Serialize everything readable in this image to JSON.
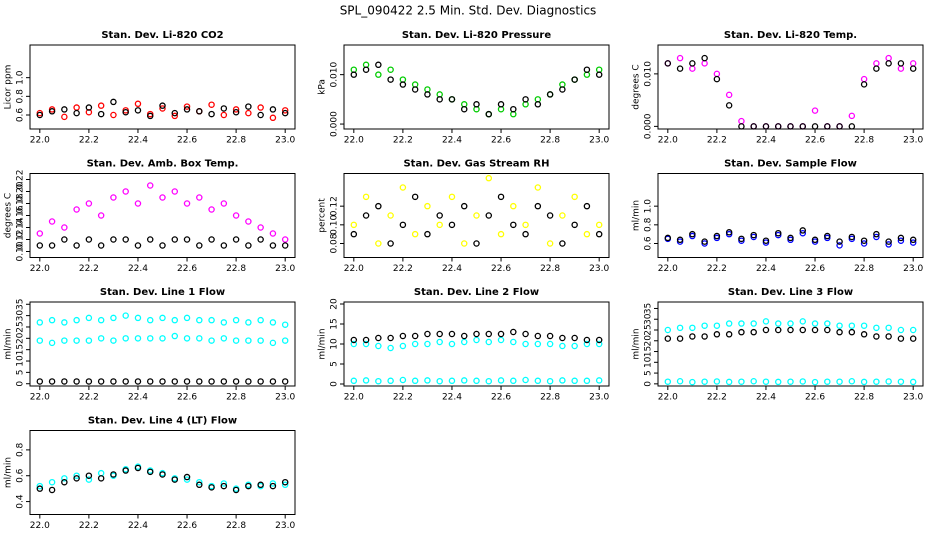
{
  "title": "SPL_090422  2.5 Min. Std. Dev. Diagnostics",
  "chart_data": [
    {
      "type": "scatter",
      "title": "Stan. Dev. Li-820 CO2",
      "y_label": "Licor ppm",
      "x": [
        22.0,
        22.05,
        22.1,
        22.15,
        22.2,
        22.25,
        22.3,
        22.35,
        22.4,
        22.45,
        22.5,
        22.55,
        22.6,
        22.65,
        22.7,
        22.75,
        22.8,
        22.85,
        22.9,
        22.95,
        23.0
      ],
      "xlim": [
        21.96,
        23.04
      ],
      "xticks": [
        {
          "value": 22,
          "label": "22.0"
        },
        22.2,
        22.4,
        22.6,
        22.8,
        {
          "value": 23,
          "label": "23.0"
        }
      ],
      "ylim": [
        0.45,
        1.35
      ],
      "yticks": [
        0.6,
        0.8,
        {
          "value": 1,
          "label": "1.0"
        }
      ],
      "series": [
        {
          "color": "#ff0000",
          "values": [
            0.62,
            0.66,
            0.58,
            0.68,
            0.63,
            0.7,
            0.6,
            0.65,
            0.72,
            0.61,
            0.67,
            0.59,
            0.69,
            0.64,
            0.71,
            0.6,
            0.66,
            0.62,
            0.68,
            0.57,
            0.65
          ]
        },
        {
          "color": "#000000",
          "values": [
            0.6,
            0.64,
            0.66,
            0.62,
            0.68,
            0.61,
            0.74,
            0.63,
            0.65,
            0.59,
            0.7,
            0.62,
            0.66,
            0.64,
            0.61,
            0.67,
            0.63,
            0.69,
            0.6,
            0.66,
            0.62
          ]
        }
      ]
    },
    {
      "type": "scatter",
      "title": "Stan. Dev. Li-820 Pressure",
      "y_label": "kPa",
      "x": [
        22.0,
        22.05,
        22.1,
        22.15,
        22.2,
        22.25,
        22.3,
        22.35,
        22.4,
        22.45,
        22.5,
        22.55,
        22.6,
        22.65,
        22.7,
        22.75,
        22.8,
        22.85,
        22.9,
        22.95,
        23.0
      ],
      "xlim": [
        21.96,
        23.04
      ],
      "xticks": [
        {
          "value": 22,
          "label": "22.0"
        },
        22.2,
        22.4,
        22.6,
        22.8,
        {
          "value": 23,
          "label": "23.0"
        }
      ],
      "ylim": [
        -0.001,
        0.016
      ],
      "yticks": [
        {
          "value": 0,
          "label": "0.000"
        },
        {
          "value": 0.01,
          "label": "0.010"
        }
      ],
      "series": [
        {
          "color": "#00cc00",
          "values": [
            0.011,
            0.012,
            0.01,
            0.011,
            0.009,
            0.008,
            0.007,
            0.006,
            0.005,
            0.004,
            0.003,
            0.002,
            0.003,
            0.002,
            0.004,
            0.005,
            0.006,
            0.008,
            0.009,
            0.01,
            0.011
          ]
        },
        {
          "color": "#000000",
          "values": [
            0.01,
            0.011,
            0.012,
            0.009,
            0.008,
            0.007,
            0.006,
            0.005,
            0.005,
            0.003,
            0.004,
            0.002,
            0.004,
            0.003,
            0.005,
            0.004,
            0.006,
            0.007,
            0.009,
            0.011,
            0.01
          ]
        }
      ]
    },
    {
      "type": "scatter",
      "title": "Stan. Dev. Li-820 Temp.",
      "y_label": "degrees C",
      "x": [
        22.0,
        22.05,
        22.1,
        22.15,
        22.2,
        22.25,
        22.3,
        22.35,
        22.4,
        22.45,
        22.5,
        22.55,
        22.6,
        22.65,
        22.7,
        22.75,
        22.8,
        22.85,
        22.9,
        22.95,
        23.0
      ],
      "xlim": [
        21.96,
        23.04
      ],
      "xticks": [
        {
          "value": 22,
          "label": "22.0"
        },
        22.2,
        22.4,
        22.6,
        22.8,
        {
          "value": 23,
          "label": "23.0"
        }
      ],
      "ylim": [
        -0.0005,
        0.0155
      ],
      "yticks": [
        {
          "value": 0,
          "label": "0.000"
        },
        {
          "value": 0.01,
          "label": "0.010"
        }
      ],
      "series": [
        {
          "color": "#ff00ff",
          "values": [
            0.012,
            0.013,
            0.011,
            0.012,
            0.01,
            0.006,
            0.001,
            0,
            0,
            0,
            0,
            0,
            0.003,
            0,
            0,
            0.002,
            0.009,
            0.012,
            0.013,
            0.011,
            0.012
          ]
        },
        {
          "color": "#000000",
          "values": [
            0.012,
            0.011,
            0.012,
            0.013,
            0.009,
            0.004,
            0,
            0,
            0,
            0,
            0,
            0,
            0,
            0,
            0,
            0,
            0.008,
            0.011,
            0.012,
            0.012,
            0.011
          ]
        }
      ]
    },
    {
      "type": "scatter",
      "title": "Stan. Dev. Amb. Box Temp.",
      "y_label": "degrees C",
      "x": [
        22.0,
        22.05,
        22.1,
        22.15,
        22.2,
        22.25,
        22.3,
        22.35,
        22.4,
        22.45,
        22.5,
        22.55,
        22.6,
        22.65,
        22.7,
        22.75,
        22.8,
        22.85,
        22.9,
        22.95,
        23.0
      ],
      "xlim": [
        21.96,
        23.04
      ],
      "xticks": [
        {
          "value": 22,
          "label": "22.0"
        },
        22.2,
        22.4,
        22.6,
        22.8,
        {
          "value": 23,
          "label": "23.0"
        }
      ],
      "ylim": [
        0.09,
        0.23
      ],
      "yticks": [
        {
          "value": 0.1,
          "label": "0.10"
        },
        0.12,
        0.14,
        0.16,
        0.18,
        {
          "value": 0.2,
          "label": "0.20"
        },
        0.22
      ],
      "series": [
        {
          "color": "#ff00ff",
          "values": [
            0.13,
            0.15,
            0.14,
            0.17,
            0.18,
            0.16,
            0.19,
            0.2,
            0.18,
            0.21,
            0.19,
            0.2,
            0.18,
            0.19,
            0.17,
            0.18,
            0.16,
            0.15,
            0.14,
            0.13,
            0.12
          ]
        },
        {
          "color": "#000000",
          "values": [
            0.11,
            0.11,
            0.12,
            0.11,
            0.12,
            0.11,
            0.12,
            0.12,
            0.11,
            0.12,
            0.11,
            0.12,
            0.12,
            0.11,
            0.12,
            0.11,
            0.12,
            0.11,
            0.12,
            0.11,
            0.11
          ]
        }
      ]
    },
    {
      "type": "scatter",
      "title": "Stan. Dev. Gas Stream RH",
      "y_label": "percent",
      "x": [
        22.0,
        22.05,
        22.1,
        22.15,
        22.2,
        22.25,
        22.3,
        22.35,
        22.4,
        22.45,
        22.5,
        22.55,
        22.6,
        22.65,
        22.7,
        22.75,
        22.8,
        22.85,
        22.9,
        22.95,
        23.0
      ],
      "xlim": [
        21.96,
        23.04
      ],
      "xticks": [
        {
          "value": 22,
          "label": "22.0"
        },
        22.2,
        22.4,
        22.6,
        22.8,
        {
          "value": 23,
          "label": "23.0"
        }
      ],
      "ylim": [
        0.065,
        0.155
      ],
      "yticks": [
        0.08,
        {
          "value": 0.1,
          "label": "0.10"
        },
        0.12
      ],
      "series": [
        {
          "color": "#ffff00",
          "values": [
            0.1,
            0.13,
            0.08,
            0.11,
            0.14,
            0.09,
            0.12,
            0.1,
            0.13,
            0.08,
            0.11,
            0.15,
            0.09,
            0.12,
            0.1,
            0.14,
            0.08,
            0.11,
            0.13,
            0.09,
            0.1
          ]
        },
        {
          "color": "#000000",
          "values": [
            0.09,
            0.11,
            0.12,
            0.08,
            0.1,
            0.13,
            0.09,
            0.11,
            0.1,
            0.12,
            0.08,
            0.11,
            0.13,
            0.1,
            0.09,
            0.12,
            0.11,
            0.08,
            0.1,
            0.12,
            0.09
          ]
        }
      ]
    },
    {
      "type": "scatter",
      "title": "Stan. Dev. Sample Flow",
      "y_label": "ml/min",
      "x": [
        22.0,
        22.05,
        22.1,
        22.15,
        22.2,
        22.25,
        22.3,
        22.35,
        22.4,
        22.45,
        22.5,
        22.55,
        22.6,
        22.65,
        22.7,
        22.75,
        22.8,
        22.85,
        22.9,
        22.95,
        23.0
      ],
      "xlim": [
        21.96,
        23.04
      ],
      "xticks": [
        {
          "value": 22,
          "label": "22.0"
        },
        22.2,
        22.4,
        22.6,
        22.8,
        {
          "value": 23,
          "label": "23.0"
        }
      ],
      "ylim": [
        0.45,
        1.35
      ],
      "yticks": [
        0.6,
        0.8,
        {
          "value": 1,
          "label": "1.0"
        }
      ],
      "series": [
        {
          "color": "#0000ff",
          "values": [
            0.65,
            0.62,
            0.68,
            0.6,
            0.66,
            0.7,
            0.63,
            0.67,
            0.61,
            0.69,
            0.64,
            0.71,
            0.62,
            0.66,
            0.58,
            0.65,
            0.6,
            0.67,
            0.59,
            0.63,
            0.61
          ]
        },
        {
          "color": "#000000",
          "values": [
            0.66,
            0.64,
            0.7,
            0.62,
            0.68,
            0.72,
            0.65,
            0.69,
            0.63,
            0.71,
            0.66,
            0.74,
            0.64,
            0.68,
            0.62,
            0.67,
            0.63,
            0.7,
            0.62,
            0.66,
            0.64
          ]
        }
      ]
    },
    {
      "type": "scatter",
      "title": "Stan. Dev. Line 1 Flow",
      "y_label": "ml/min",
      "x": [
        22.0,
        22.05,
        22.1,
        22.15,
        22.2,
        22.25,
        22.3,
        22.35,
        22.4,
        22.45,
        22.5,
        22.55,
        22.6,
        22.65,
        22.7,
        22.75,
        22.8,
        22.85,
        22.9,
        22.95,
        23.0
      ],
      "xlim": [
        21.96,
        23.04
      ],
      "xticks": [
        {
          "value": 22,
          "label": "22.0"
        },
        22.2,
        22.4,
        22.6,
        22.8,
        {
          "value": 23,
          "label": "23.0"
        }
      ],
      "ylim": [
        -1,
        36
      ],
      "yticks": [
        0,
        5,
        10,
        15,
        20,
        25,
        30,
        35
      ],
      "series": [
        {
          "color": "#00ffff",
          "values": [
            27,
            28,
            27,
            28,
            29,
            28,
            29,
            30,
            29,
            28,
            29,
            28,
            29,
            28,
            28,
            27,
            28,
            27,
            28,
            27,
            26
          ]
        },
        {
          "color": "#00ffff",
          "values": [
            19,
            18,
            19,
            19,
            19,
            20,
            19,
            20,
            20,
            20,
            20,
            21,
            20,
            20,
            19,
            20,
            19,
            19,
            19,
            18,
            19
          ]
        },
        {
          "color": "#000000",
          "values": [
            1,
            1,
            1,
            1,
            1,
            1,
            1,
            1,
            1,
            1,
            1,
            1,
            1,
            1,
            1,
            1,
            1,
            1,
            1,
            1,
            1
          ]
        }
      ]
    },
    {
      "type": "scatter",
      "title": "Stan. Dev. Line 2 Flow",
      "y_label": "ml/min",
      "x": [
        22.0,
        22.05,
        22.1,
        22.15,
        22.2,
        22.25,
        22.3,
        22.35,
        22.4,
        22.45,
        22.5,
        22.55,
        22.6,
        22.65,
        22.7,
        22.75,
        22.8,
        22.85,
        22.9,
        22.95,
        23.0
      ],
      "xlim": [
        21.96,
        23.04
      ],
      "xticks": [
        {
          "value": 22,
          "label": "22.0"
        },
        22.2,
        22.4,
        22.6,
        22.8,
        {
          "value": 23,
          "label": "23.0"
        }
      ],
      "ylim": [
        -0.5,
        20.5
      ],
      "yticks": [
        0,
        5,
        10,
        15,
        20
      ],
      "series": [
        {
          "color": "#00ffff",
          "values": [
            10,
            10,
            9.5,
            9,
            9.5,
            10,
            10,
            10.5,
            10,
            10.5,
            11,
            10.5,
            11,
            10.5,
            10,
            10,
            10,
            9.5,
            9.5,
            10,
            10
          ]
        },
        {
          "color": "#00ffff",
          "values": [
            0.8,
            0.9,
            0.7,
            0.8,
            1,
            0.8,
            0.9,
            0.7,
            0.8,
            0.9,
            0.8,
            0.7,
            0.9,
            0.8,
            1,
            0.8,
            0.7,
            0.9,
            0.8,
            0.8,
            0.9
          ]
        },
        {
          "color": "#000000",
          "values": [
            11,
            11,
            11.5,
            11.5,
            12,
            12,
            12.5,
            12.5,
            12.5,
            12,
            12.5,
            12.5,
            12.5,
            13,
            12.5,
            12,
            12,
            11.5,
            11.5,
            11,
            11
          ]
        }
      ]
    },
    {
      "type": "scatter",
      "title": "Stan. Dev. Line 3 Flow",
      "y_label": "ml/min",
      "x": [
        22.0,
        22.05,
        22.1,
        22.15,
        22.2,
        22.25,
        22.3,
        22.35,
        22.4,
        22.45,
        22.5,
        22.55,
        22.6,
        22.65,
        22.7,
        22.75,
        22.8,
        22.85,
        22.9,
        22.95,
        23.0
      ],
      "xlim": [
        21.96,
        23.04
      ],
      "xticks": [
        {
          "value": 22,
          "label": "22.0"
        },
        22.2,
        22.4,
        22.6,
        22.8,
        {
          "value": 23,
          "label": "23.0"
        }
      ],
      "ylim": [
        -1,
        38
      ],
      "yticks": [
        0,
        5,
        10,
        15,
        20,
        25,
        30,
        35
      ],
      "series": [
        {
          "color": "#00ffff",
          "values": [
            25,
            26,
            26,
            27,
            27,
            28,
            28,
            28,
            29,
            28,
            28,
            29,
            28,
            28,
            27,
            27,
            27,
            26,
            26,
            25,
            25
          ]
        },
        {
          "color": "#00ffff",
          "values": [
            1,
            1.2,
            0.8,
            1,
            1.1,
            0.9,
            1,
            1.2,
            1,
            0.9,
            1,
            1.1,
            0.8,
            1,
            1,
            1.2,
            0.9,
            1,
            1.1,
            1,
            0.9
          ]
        },
        {
          "color": "#000000",
          "values": [
            21,
            21,
            22,
            22,
            23,
            23,
            24,
            24,
            25,
            25,
            25,
            25,
            25,
            25,
            24,
            24,
            23,
            22,
            22,
            21,
            21
          ]
        }
      ]
    },
    {
      "type": "scatter",
      "title": "Stan. Dev. Line 4 (LT) Flow",
      "y_label": "ml/min",
      "x": [
        22.0,
        22.05,
        22.1,
        22.15,
        22.2,
        22.25,
        22.3,
        22.35,
        22.4,
        22.45,
        22.5,
        22.55,
        22.6,
        22.65,
        22.7,
        22.75,
        22.8,
        22.85,
        22.9,
        22.95,
        23.0
      ],
      "xlim": [
        21.96,
        23.04
      ],
      "xticks": [
        {
          "value": 22,
          "label": "22.0"
        },
        22.2,
        22.4,
        22.6,
        22.8,
        {
          "value": 23,
          "label": "23.0"
        }
      ],
      "ylim": [
        0.3,
        0.95
      ],
      "yticks": [
        0.4,
        0.6,
        0.8
      ],
      "series": [
        {
          "color": "#00ffff",
          "values": [
            0.52,
            0.55,
            0.58,
            0.6,
            0.57,
            0.62,
            0.6,
            0.65,
            0.67,
            0.64,
            0.62,
            0.58,
            0.57,
            0.55,
            0.52,
            0.54,
            0.5,
            0.53,
            0.52,
            0.54,
            0.53
          ]
        },
        {
          "color": "#000000",
          "values": [
            0.5,
            0.49,
            0.55,
            0.58,
            0.6,
            0.58,
            0.61,
            0.64,
            0.66,
            0.63,
            0.61,
            0.57,
            0.59,
            0.53,
            0.51,
            0.52,
            0.49,
            0.52,
            0.53,
            0.52,
            0.55
          ]
        }
      ]
    }
  ]
}
